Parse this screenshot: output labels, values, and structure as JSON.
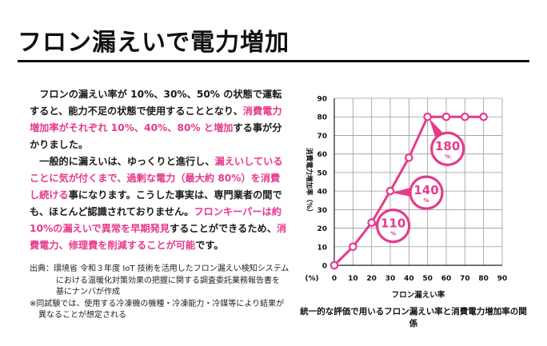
{
  "page": {
    "title": "フロン漏えいで電力増加",
    "paragraph1_parts": [
      {
        "text": "フロンの漏えい率が 10%、30%、50% の状態で運転すると、能力不足の状態で使用することとなり、",
        "pink": false
      },
      {
        "text": "消費電力増加率がそれぞれ 10%、40%、80% と増加",
        "pink": true
      },
      {
        "text": "する事が分かりました。",
        "pink": false
      }
    ],
    "paragraph2_parts": [
      {
        "text": "一般的に漏えいは、ゆっくりと進行し、",
        "pink": false
      },
      {
        "text": "漏えいしていることに気が付くまで、過剰な電力（最大約 80%）を消費し続ける",
        "pink": true
      },
      {
        "text": "事になります。こうした事実は、専門業者の間でも、ほとんど認識されておりません。",
        "pink": false
      },
      {
        "text": "フロンキーパーは約 10%の漏えいで異常を早期発見",
        "pink": true
      },
      {
        "text": "することができるため、",
        "pink": false
      },
      {
        "text": "消費電力、修理費を削減することが可能",
        "pink": true
      },
      {
        "text": "です。",
        "pink": false
      }
    ],
    "source_label": "出典：",
    "source_line1": "環境省 令和３年度 IoT 技術を活用したフロン漏えい検知システム",
    "source_line2": "における温暖化対策効果の把握に関する調査委託業務報告書を",
    "source_line3": "基にナンバが作成",
    "note_line1": "※同試験では、使用する冷凍機の機種・冷凍能力・冷媒等により結果が",
    "note_line2": "異なることが想定される",
    "caption": "統一的な評価で用いるフロン漏えい率と消費電力増加率の関係"
  },
  "chart_data": {
    "type": "line",
    "xlabel": "フロン漏えい率",
    "ylabel": "消費電力増加率（%）",
    "unit_label": "(%)",
    "x_ticks": [
      0,
      10,
      20,
      30,
      40,
      50,
      60,
      70,
      80,
      90
    ],
    "y_ticks": [
      0,
      10,
      20,
      30,
      40,
      50,
      60,
      70,
      80,
      90
    ],
    "xlim": [
      0,
      90
    ],
    "ylim": [
      0,
      90
    ],
    "grid": true,
    "series": [
      {
        "x": [
          0,
          10,
          20,
          30,
          40,
          50,
          60,
          70,
          80
        ],
        "y": [
          0,
          10,
          23,
          40,
          58,
          80,
          80,
          80,
          80
        ],
        "color": "#e63a8c"
      }
    ],
    "callouts": [
      {
        "value": "110",
        "unit": "%",
        "x": 20
      },
      {
        "value": "140",
        "unit": "%",
        "x": 30
      },
      {
        "value": "180",
        "unit": "%",
        "x": 50
      }
    ],
    "accent_color": "#e63a8c"
  }
}
